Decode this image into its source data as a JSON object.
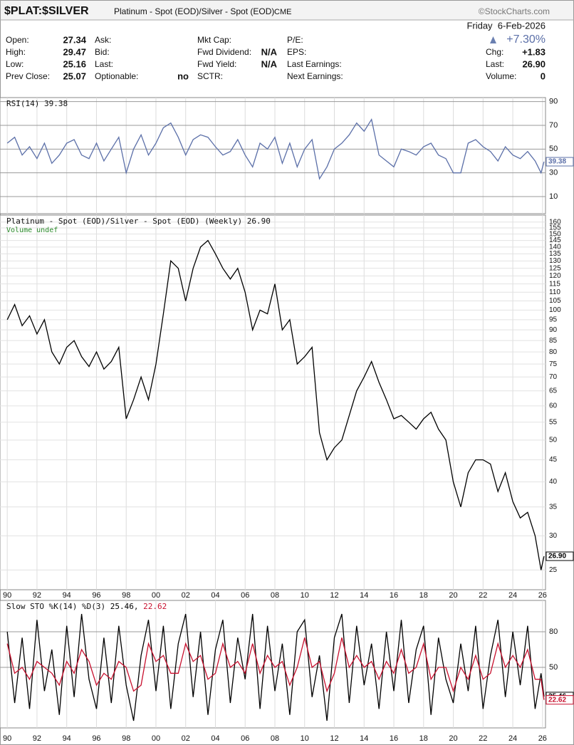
{
  "header": {
    "symbol": "$PLAT:$SILVER",
    "description": "Platinum - Spot (EOD)/Silver - Spot (EOD)",
    "exchange": "CME",
    "brand": "©StockCharts.com",
    "date": "Friday  6-Feb-2026",
    "change_pct": "+7.30%",
    "columns": [
      [
        {
          "label": "Open:",
          "value": "27.34"
        },
        {
          "label": "High:",
          "value": "29.47"
        },
        {
          "label": "Low:",
          "value": "25.16"
        },
        {
          "label": "Prev Close:",
          "value": "25.07"
        }
      ],
      [
        {
          "label": "Ask:"
        },
        {
          "label": "Bid:"
        },
        {
          "label": "Last:"
        },
        {
          "label": "Optionable:",
          "value": "no"
        }
      ],
      [
        {
          "label": "Mkt Cap:"
        },
        {
          "label": "Fwd Dividend:",
          "value": "N/A"
        },
        {
          "label": "Fwd Yield:",
          "value": "N/A"
        },
        {
          "label": "SCTR:"
        }
      ],
      [
        {
          "label": "P/E:"
        },
        {
          "label": "EPS:"
        },
        {
          "label": "Last Earnings:"
        },
        {
          "label": "Next Earnings:"
        }
      ]
    ],
    "right": [
      {
        "label": "Chg:",
        "value": "+1.83"
      },
      {
        "label": "Last:",
        "value": "26.90"
      },
      {
        "label": "Volume:",
        "value": "0"
      }
    ]
  },
  "chart_data": [
    {
      "type": "line",
      "title": "RSI(14)",
      "color": "#5b6fa8",
      "grid": true,
      "x": [
        1990,
        1990.5,
        1991,
        1991.5,
        1992,
        1992.5,
        1993,
        1993.5,
        1994,
        1994.5,
        1995,
        1995.5,
        1996,
        1996.5,
        1997,
        1997.5,
        1998,
        1998.5,
        1999,
        1999.5,
        2000,
        2000.5,
        2001,
        2001.5,
        2002,
        2002.5,
        2003,
        2003.5,
        2004,
        2004.5,
        2005,
        2005.5,
        2006,
        2006.5,
        2007,
        2007.5,
        2008,
        2008.5,
        2009,
        2009.5,
        2010,
        2010.5,
        2011,
        2011.5,
        2012,
        2012.5,
        2013,
        2013.5,
        2014,
        2014.5,
        2015,
        2015.5,
        2016,
        2016.5,
        2017,
        2017.5,
        2018,
        2018.5,
        2019,
        2019.5,
        2020,
        2020.5,
        2021,
        2021.5,
        2022,
        2022.5,
        2023,
        2023.5,
        2024,
        2024.5,
        2025,
        2025.5,
        2025.9,
        2026.1
      ],
      "values": [
        55,
        60,
        45,
        52,
        42,
        55,
        38,
        45,
        55,
        58,
        45,
        42,
        55,
        40,
        50,
        60,
        30,
        50,
        62,
        45,
        55,
        68,
        72,
        60,
        45,
        58,
        62,
        60,
        52,
        45,
        48,
        58,
        45,
        35,
        55,
        50,
        60,
        38,
        55,
        35,
        50,
        58,
        25,
        35,
        50,
        55,
        62,
        72,
        65,
        75,
        45,
        40,
        35,
        50,
        48,
        45,
        52,
        55,
        45,
        42,
        30,
        30,
        55,
        58,
        52,
        48,
        40,
        52,
        45,
        42,
        48,
        40,
        30,
        39.38
      ],
      "xlim": [
        1989.8,
        2026.2
      ],
      "ylim": [
        -4.4,
        93.4
      ],
      "yticks": [
        10,
        30,
        50,
        70,
        90
      ]
    },
    {
      "type": "line",
      "log": true,
      "grid": true,
      "volume_label": "Volume undef",
      "x": [
        1990,
        1990.5,
        1991,
        1991.5,
        1992,
        1992.5,
        1993,
        1993.5,
        1994,
        1994.5,
        1995,
        1995.5,
        1996,
        1996.5,
        1997,
        1997.5,
        1998,
        1998.5,
        1999,
        1999.5,
        2000,
        2000.5,
        2001,
        2001.5,
        2002,
        2002.5,
        2003,
        2003.5,
        2004,
        2004.5,
        2005,
        2005.5,
        2006,
        2006.5,
        2007,
        2007.5,
        2008,
        2008.5,
        2009,
        2009.5,
        2010,
        2010.5,
        2011,
        2011.5,
        2012,
        2012.5,
        2013,
        2013.5,
        2014,
        2014.5,
        2015,
        2015.5,
        2016,
        2016.5,
        2017,
        2017.5,
        2018,
        2018.5,
        2019,
        2019.5,
        2020,
        2020.5,
        2021,
        2021.5,
        2022,
        2022.5,
        2023,
        2023.5,
        2024,
        2024.5,
        2025,
        2025.5,
        2025.9,
        2026.1
      ],
      "series": [
        {
          "name": "Platinum - Spot (EOD)/Silver - Spot (EOD) (Weekly)",
          "color": "#000000",
          "values": [
            95,
            103,
            92,
            97,
            88,
            95,
            80,
            75,
            82,
            85,
            78,
            74,
            80,
            73,
            76,
            82,
            56,
            62,
            70,
            62,
            75,
            98,
            130,
            125,
            105,
            125,
            140,
            145,
            135,
            125,
            118,
            125,
            110,
            90,
            100,
            98,
            115,
            90,
            95,
            75,
            78,
            82,
            52,
            45,
            48,
            50,
            57,
            65,
            70,
            76,
            68,
            62,
            56,
            57,
            55,
            53,
            56,
            58,
            53,
            50,
            40,
            35,
            42,
            45,
            45,
            44,
            38,
            42,
            36,
            33,
            34,
            30,
            25,
            26.9
          ]
        }
      ],
      "xlim": [
        1989.8,
        2026.2
      ],
      "ylim": [
        22.5,
        166
      ],
      "yticks": [
        25,
        30,
        35,
        40,
        45,
        50,
        55,
        60,
        65,
        70,
        75,
        80,
        85,
        90,
        95,
        100,
        105,
        110,
        115,
        120,
        125,
        130,
        135,
        140,
        145,
        150,
        155,
        160
      ],
      "xticks": [
        {
          "value": 1990,
          "label": "90"
        },
        {
          "value": 1992,
          "label": "92"
        },
        {
          "value": 1994,
          "label": "94"
        },
        {
          "value": 1996,
          "label": "96"
        },
        {
          "value": 1998,
          "label": "98"
        },
        {
          "value": 2000,
          "label": "00"
        },
        {
          "value": 2002,
          "label": "02"
        },
        {
          "value": 2004,
          "label": "04"
        },
        {
          "value": 2006,
          "label": "06"
        },
        {
          "value": 2008,
          "label": "08"
        },
        {
          "value": 2010,
          "label": "10"
        },
        {
          "value": 2012,
          "label": "12"
        },
        {
          "value": 2014,
          "label": "14"
        },
        {
          "value": 2016,
          "label": "16"
        },
        {
          "value": 2018,
          "label": "18"
        },
        {
          "value": 2020,
          "label": "20"
        },
        {
          "value": 2022,
          "label": "22"
        },
        {
          "value": 2024,
          "label": "24"
        },
        {
          "value": 2026,
          "label": "26"
        }
      ]
    },
    {
      "type": "line",
      "title": "Slow STO",
      "grid": true,
      "x": [
        1990,
        1990.5,
        1991,
        1991.5,
        1992,
        1992.5,
        1993,
        1993.5,
        1994,
        1994.5,
        1995,
        1995.5,
        1996,
        1996.5,
        1997,
        1997.5,
        1998,
        1998.5,
        1999,
        1999.5,
        2000,
        2000.5,
        2001,
        2001.5,
        2002,
        2002.5,
        2003,
        2003.5,
        2004,
        2004.5,
        2005,
        2005.5,
        2006,
        2006.5,
        2007,
        2007.5,
        2008,
        2008.5,
        2009,
        2009.5,
        2010,
        2010.5,
        2011,
        2011.5,
        2012,
        2012.5,
        2013,
        2013.5,
        2014,
        2014.5,
        2015,
        2015.5,
        2016,
        2016.5,
        2017,
        2017.5,
        2018,
        2018.5,
        2019,
        2019.5,
        2020,
        2020.5,
        2021,
        2021.5,
        2022,
        2022.5,
        2023,
        2023.5,
        2024,
        2024.5,
        2025,
        2025.5,
        2025.9,
        2026.1
      ],
      "series": [
        {
          "name": "%K(14)",
          "color": "#000000",
          "values": [
            80,
            20,
            75,
            15,
            90,
            30,
            65,
            10,
            85,
            25,
            95,
            40,
            15,
            75,
            20,
            85,
            35,
            5,
            60,
            90,
            30,
            85,
            15,
            70,
            95,
            25,
            80,
            10,
            65,
            90,
            20,
            75,
            40,
            95,
            15,
            85,
            30,
            70,
            10,
            80,
            90,
            25,
            60,
            5,
            75,
            95,
            20,
            85,
            35,
            70,
            15,
            80,
            30,
            90,
            20,
            65,
            85,
            10,
            75,
            40,
            20,
            70,
            30,
            85,
            15,
            60,
            90,
            25,
            80,
            35,
            85,
            15,
            45,
            25.46
          ]
        },
        {
          "name": "%D(3)",
          "color": "#c8102e",
          "values": [
            70,
            45,
            50,
            40,
            55,
            50,
            45,
            35,
            55,
            45,
            65,
            55,
            35,
            45,
            40,
            55,
            50,
            30,
            35,
            70,
            55,
            60,
            45,
            45,
            70,
            55,
            60,
            40,
            45,
            70,
            50,
            55,
            45,
            70,
            45,
            60,
            50,
            55,
            35,
            50,
            75,
            50,
            55,
            30,
            45,
            75,
            50,
            60,
            50,
            55,
            40,
            55,
            45,
            65,
            45,
            50,
            70,
            40,
            50,
            50,
            30,
            50,
            40,
            60,
            40,
            45,
            70,
            50,
            60,
            50,
            65,
            40,
            40,
            22.62
          ]
        }
      ],
      "xlim": [
        1989.8,
        2026.2
      ],
      "ylim": [
        -1,
        106.4
      ],
      "yticks": [
        50,
        80
      ],
      "xticks": [
        {
          "value": 1990,
          "label": "90"
        },
        {
          "value": 1992,
          "label": "92"
        },
        {
          "value": 1994,
          "label": "94"
        },
        {
          "value": 1996,
          "label": "96"
        },
        {
          "value": 1998,
          "label": "98"
        },
        {
          "value": 2000,
          "label": "00"
        },
        {
          "value": 2002,
          "label": "02"
        },
        {
          "value": 2004,
          "label": "04"
        },
        {
          "value": 2006,
          "label": "06"
        },
        {
          "value": 2008,
          "label": "08"
        },
        {
          "value": 2010,
          "label": "10"
        },
        {
          "value": 2012,
          "label": "12"
        },
        {
          "value": 2014,
          "label": "14"
        },
        {
          "value": 2016,
          "label": "16"
        },
        {
          "value": 2018,
          "label": "18"
        },
        {
          "value": 2020,
          "label": "20"
        },
        {
          "value": 2022,
          "label": "22"
        },
        {
          "value": 2024,
          "label": "24"
        },
        {
          "value": 2026,
          "label": "26"
        }
      ]
    }
  ]
}
